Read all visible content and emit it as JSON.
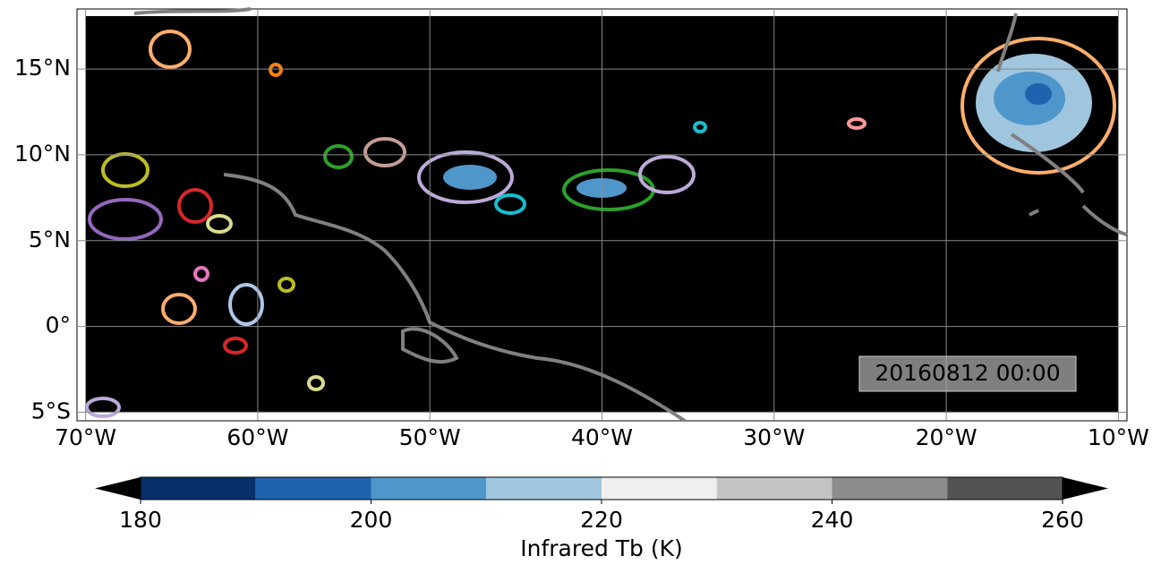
{
  "map": {
    "xlim": [
      -70.5,
      -9.5
    ],
    "ylim": [
      -5.5,
      18.5
    ],
    "xticks": [
      {
        "value": -70,
        "label": "70°W"
      },
      {
        "value": -60,
        "label": "60°W"
      },
      {
        "value": -50,
        "label": "50°W"
      },
      {
        "value": -40,
        "label": "40°W"
      },
      {
        "value": -30,
        "label": "30°W"
      },
      {
        "value": -20,
        "label": "20°W"
      },
      {
        "value": -10,
        "label": "10°W"
      }
    ],
    "yticks": [
      {
        "value": -5,
        "label": "5°S"
      },
      {
        "value": 0,
        "label": "0°"
      },
      {
        "value": 5,
        "label": "5°N"
      },
      {
        "value": 10,
        "label": "10°N"
      },
      {
        "value": 15,
        "label": "15°N"
      }
    ],
    "grid": true,
    "timestamp": "20160812 00:00"
  },
  "colorbar": {
    "label": "Infrared Tb (K)",
    "levels": [
      180,
      190,
      200,
      210,
      220,
      230,
      240,
      250,
      260
    ],
    "colors": [
      "#08306b",
      "#1f62ad",
      "#4f97cb",
      "#9fc6de",
      "#efefef",
      "#c4c4c4",
      "#8c8c8c",
      "#525252"
    ],
    "under_color": "#000000",
    "over_color": "#000000",
    "ticks": [
      180,
      200,
      220,
      240,
      260
    ]
  }
}
